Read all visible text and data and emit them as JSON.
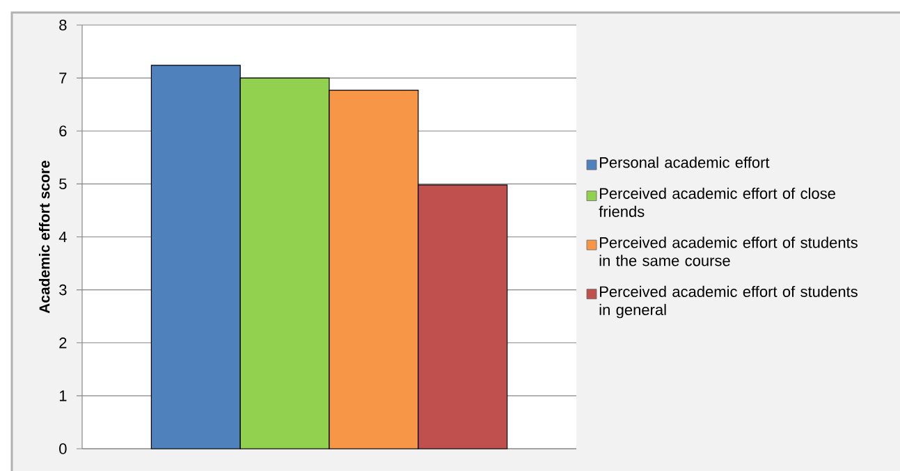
{
  "chart_data": {
    "type": "bar",
    "categories": [
      null
    ],
    "ylabel": "Academic effort score",
    "ylim": [
      0,
      8
    ],
    "yticks": [
      0,
      1,
      2,
      3,
      4,
      5,
      6,
      7,
      8
    ],
    "grid": "y",
    "legend": "right",
    "series": [
      {
        "name": "Personal academic effort",
        "color": "#4f81bd",
        "values": [
          7.24
        ]
      },
      {
        "name": "Perceived academic effort of close friends",
        "color": "#92d050",
        "values": [
          7.0
        ]
      },
      {
        "name": "Perceived academic effort of students in the same course",
        "color": "#f79646",
        "values": [
          6.77
        ]
      },
      {
        "name": "Perceived academic effort of students in general",
        "color": "#c0504d",
        "values": [
          4.98
        ]
      }
    ]
  }
}
